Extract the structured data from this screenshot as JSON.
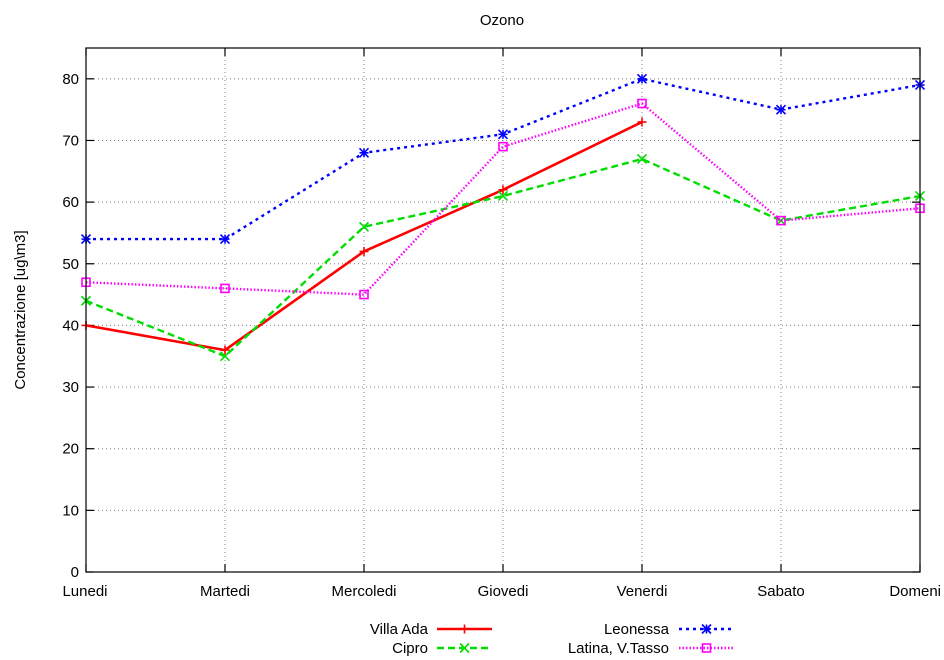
{
  "chart_data": {
    "type": "line",
    "title": "Ozono",
    "xlabel": "",
    "ylabel": "Concentrazione [ug\\m3]",
    "categories": [
      "Lunedi",
      "Martedi",
      "Mercoledi",
      "Giovedi",
      "Venerdi",
      "Sabato",
      "Domeni"
    ],
    "ylim": [
      0,
      85
    ],
    "yticks": [
      0,
      10,
      20,
      30,
      40,
      50,
      60,
      70,
      80
    ],
    "grid": true,
    "legend": "bottom",
    "series": [
      {
        "name": "Villa Ada",
        "values": [
          40,
          36,
          52,
          62,
          73,
          null,
          null
        ],
        "color": "#ff0000",
        "marker": "plus",
        "dash": "solid"
      },
      {
        "name": "Cipro",
        "values": [
          44,
          35,
          56,
          61,
          67,
          57,
          61
        ],
        "color": "#00dd00",
        "marker": "cross",
        "dash": "dashed"
      },
      {
        "name": "Leonessa",
        "values": [
          54,
          54,
          68,
          71,
          80,
          75,
          79
        ],
        "color": "#0000ff",
        "marker": "star",
        "dash": "dotted"
      },
      {
        "name": "Latina, V.Tasso",
        "values": [
          47,
          46,
          45,
          69,
          76,
          57,
          59
        ],
        "color": "#ff00ff",
        "marker": "square",
        "dash": "fine-dotted"
      }
    ]
  }
}
